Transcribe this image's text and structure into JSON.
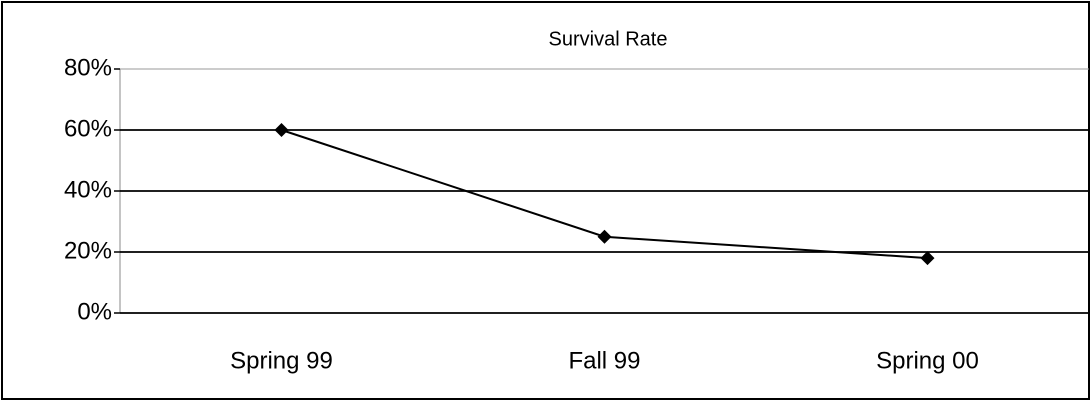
{
  "chart_data": {
    "type": "line",
    "title": "Survival Rate",
    "categories": [
      "Spring 99",
      "Fall 99",
      "Spring 00"
    ],
    "values": [
      60,
      25,
      18
    ],
    "color": "#000000",
    "ylim": [
      0,
      80
    ],
    "yticks": [
      {
        "value": 0,
        "label": "0%"
      },
      {
        "value": 20,
        "label": "20%"
      },
      {
        "value": 40,
        "label": "40%"
      },
      {
        "value": 60,
        "label": "60%"
      },
      {
        "value": 80,
        "label": "80%"
      }
    ],
    "grid": true
  }
}
